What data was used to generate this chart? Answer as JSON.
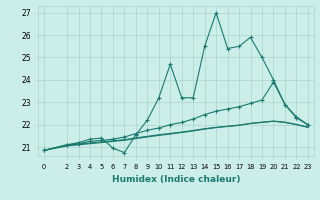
{
  "xlabel": "Humidex (Indice chaleur)",
  "ylabel": "",
  "bg_color": "#cceee8",
  "grid_color": "#aad4cc",
  "line_color": "#1a7a6e",
  "marker": "+",
  "xlim": [
    -0.5,
    23.5
  ],
  "ylim": [
    20.6,
    27.3
  ],
  "xticks": [
    0,
    2,
    3,
    4,
    5,
    6,
    7,
    8,
    9,
    10,
    11,
    12,
    13,
    14,
    15,
    16,
    17,
    18,
    19,
    20,
    21,
    22,
    23
  ],
  "yticks": [
    21,
    22,
    23,
    24,
    25,
    26,
    27
  ],
  "line1_x": [
    0,
    2,
    3,
    4,
    5,
    6,
    7,
    8,
    9,
    10,
    11,
    12,
    13,
    14,
    15,
    16,
    17,
    18,
    19,
    20,
    21,
    22,
    23
  ],
  "line1_y": [
    20.85,
    21.1,
    21.2,
    21.35,
    21.4,
    20.95,
    20.75,
    21.55,
    22.2,
    23.2,
    24.7,
    23.2,
    23.2,
    25.5,
    27.0,
    25.4,
    25.5,
    25.9,
    25.0,
    24.0,
    22.9,
    22.3,
    22.0
  ],
  "line2_x": [
    0,
    2,
    3,
    4,
    5,
    6,
    7,
    8,
    9,
    10,
    11,
    12,
    13,
    14,
    15,
    16,
    17,
    18,
    19,
    20,
    21,
    22,
    23
  ],
  "line2_y": [
    20.85,
    21.1,
    21.15,
    21.25,
    21.3,
    21.35,
    21.45,
    21.6,
    21.75,
    21.85,
    22.0,
    22.1,
    22.25,
    22.45,
    22.6,
    22.7,
    22.8,
    22.95,
    23.1,
    23.9,
    22.9,
    22.35,
    22.0
  ],
  "line3_x": [
    0,
    2,
    3,
    4,
    5,
    6,
    7,
    8,
    9,
    10,
    11,
    12,
    13,
    14,
    15,
    16,
    17,
    18,
    19,
    20,
    21,
    22,
    23
  ],
  "line3_y": [
    20.85,
    21.05,
    21.1,
    21.15,
    21.2,
    21.25,
    21.3,
    21.38,
    21.45,
    21.52,
    21.58,
    21.65,
    21.72,
    21.8,
    21.87,
    21.92,
    21.97,
    22.05,
    22.1,
    22.15,
    22.1,
    22.0,
    21.88
  ],
  "line4_x": [
    0,
    2,
    3,
    4,
    5,
    6,
    7,
    8,
    9,
    10,
    11,
    12,
    13,
    14,
    15,
    16,
    17,
    18,
    19,
    20,
    21,
    22,
    23
  ],
  "line4_y": [
    20.85,
    21.08,
    21.13,
    21.18,
    21.23,
    21.28,
    21.33,
    21.41,
    21.48,
    21.55,
    21.61,
    21.67,
    21.74,
    21.82,
    21.88,
    21.93,
    21.98,
    22.06,
    22.11,
    22.16,
    22.11,
    22.01,
    21.89
  ]
}
